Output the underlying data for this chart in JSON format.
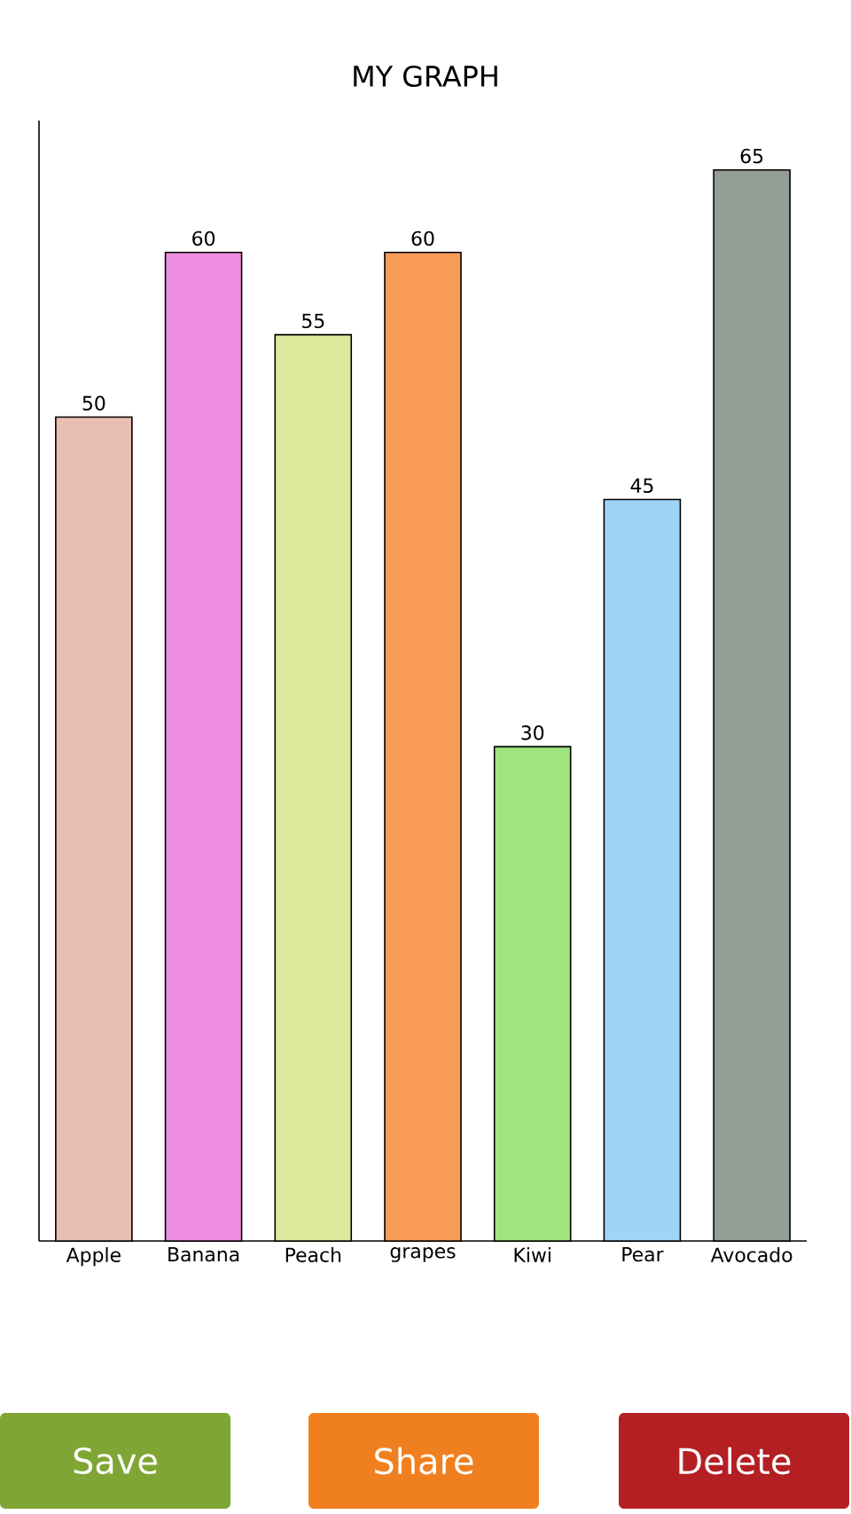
{
  "chart_data": {
    "type": "bar",
    "title": "MY GRAPH",
    "categories": [
      "Apple",
      "Banana",
      "Peach",
      "grapes",
      "Kiwi",
      "Pear",
      "Avocado"
    ],
    "values": [
      50,
      60,
      55,
      60,
      30,
      45,
      65
    ],
    "colors": [
      "#e8bfb0",
      "#ee8ee0",
      "#dde89c",
      "#f99c58",
      "#9fe47c",
      "#9fd4f7",
      "#939e96"
    ],
    "ylim": [
      0,
      68
    ],
    "data_labels": true,
    "tick_labels": "x",
    "annotations": [
      "Save",
      "Share",
      "Delete"
    ]
  }
}
